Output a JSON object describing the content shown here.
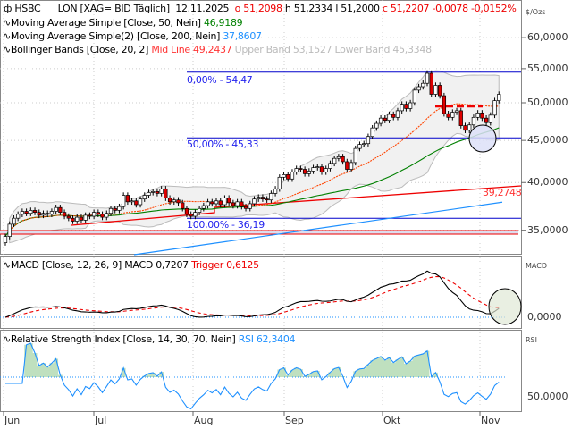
{
  "header": {
    "symbol": "HSBC",
    "exchange": "LON [XAG= BID Täglich]",
    "date": "12.11.2025",
    "open": "o 51,2098",
    "high": "h 51,2334",
    "low": "l 51,2000",
    "close": "c 51,2207",
    "change": "-0,0078",
    "change_pct": "-0,0152%",
    "unit": "$/Ozs"
  },
  "indicators": {
    "sma50": {
      "label": "Moving Average Simple  [Close, 50, Nein]",
      "value": "46,9189",
      "color": "#008000"
    },
    "sma200": {
      "label": "Moving Average Simple(2)  [Close, 200, Nein]",
      "value": "37,8607",
      "color": "#1e90ff"
    },
    "bb": {
      "label": "Bollinger Bands  [Close, 20, 2]",
      "mid": "Mid Line 49,2437",
      "upper": "Upper Band 53,1527",
      "lower": "Lower Band 45,3348"
    },
    "macd": {
      "label": "MACD  [Close, 12, 26, 9]",
      "value": "MACD 0,7207",
      "trigger": "Trigger 0,6125",
      "axis": "MACD",
      "zero": "0,0000"
    },
    "rsi": {
      "label": "Relative Strength Index  [Close, 14, 30, 70, Nein]",
      "value": "RSI 62,3404",
      "axis": "RSI",
      "level": "50,0000"
    }
  },
  "fib": [
    {
      "label": "0,00% - 54,47",
      "price": 54.47
    },
    {
      "label": "50,00% - 45,33",
      "price": 45.33
    },
    {
      "label": "100,00% - 36,19",
      "price": 36.19
    }
  ],
  "trendline_label": "39,2748",
  "price_axis": [
    {
      "v": 60,
      "l": "60,0000"
    },
    {
      "v": 55,
      "l": "55,0000"
    },
    {
      "v": 50,
      "l": "50,0000"
    },
    {
      "v": 45,
      "l": "45,0000"
    },
    {
      "v": 40,
      "l": "40,0000"
    },
    {
      "v": 35,
      "l": "35,0000"
    }
  ],
  "months": [
    "Jun",
    "Jul",
    "Aug",
    "Sep",
    "Okt",
    "Nov"
  ],
  "chart_data": {
    "type": "candlestick",
    "scale": "log",
    "x_start": "2025-06-02",
    "x_end": "2025-11-12",
    "closes": [
      34.4,
      35.6,
      36.2,
      36.6,
      36.9,
      36.7,
      37.0,
      36.8,
      36.5,
      36.7,
      36.6,
      36.9,
      37.3,
      36.8,
      36.4,
      36.2,
      35.9,
      36.3,
      36.0,
      36.5,
      36.4,
      36.8,
      36.6,
      36.3,
      36.7,
      37.2,
      37.0,
      37.4,
      38.6,
      37.9,
      38.0,
      37.6,
      38.2,
      38.6,
      38.9,
      39.0,
      38.8,
      39.3,
      38.3,
      37.9,
      38.1,
      37.8,
      37.2,
      36.6,
      36.4,
      36.8,
      37.2,
      37.5,
      37.9,
      37.7,
      38.0,
      37.6,
      38.3,
      37.8,
      37.5,
      37.9,
      37.4,
      37.2,
      37.7,
      38.2,
      38.4,
      38.2,
      38.1,
      38.8,
      39.3,
      40.6,
      40.9,
      40.4,
      41.2,
      41.6,
      41.5,
      41.0,
      41.3,
      41.7,
      41.8,
      41.2,
      41.6,
      42.2,
      42.8,
      43.0,
      42.4,
      41.5,
      42.3,
      44.0,
      44.5,
      44.6,
      45.5,
      46.6,
      47.2,
      47.9,
      47.6,
      48.4,
      48.0,
      48.9,
      49.8,
      49.2,
      50.0,
      51.8,
      52.3,
      52.8,
      54.3,
      51.2,
      52.5,
      51.0,
      48.5,
      48.0,
      48.7,
      48.9,
      46.9,
      46.3,
      47.0,
      48.0,
      48.6,
      47.9,
      47.3,
      48.3,
      50.3,
      51.2
    ]
  }
}
